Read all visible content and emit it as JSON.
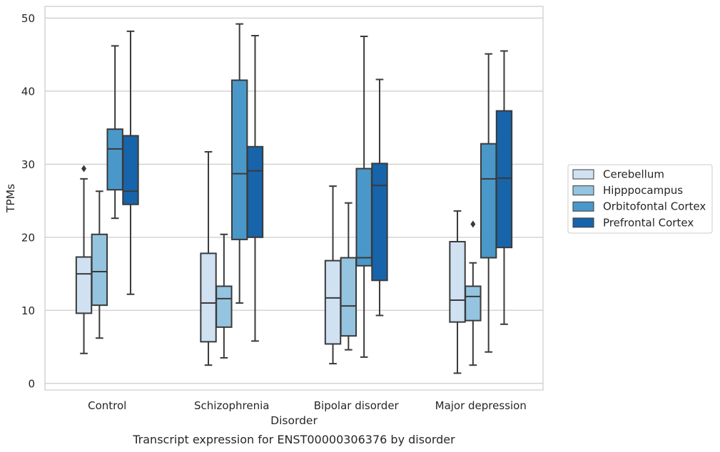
{
  "chart_data": {
    "type": "boxplot",
    "caption": "Transcript expression for ENST00000306376 by disorder",
    "xlabel": "Disorder",
    "ylabel": "TPMs",
    "ylim": [
      -0.9,
      51.6
    ],
    "yticks": [
      0,
      10,
      20,
      30,
      40,
      50
    ],
    "grid": "horizontal",
    "legend_placement": "right",
    "categories": [
      "Control",
      "Schizophrenia",
      "Bipolar disorder",
      "Major depression"
    ],
    "series": [
      {
        "name": "Cerebellum",
        "color": "#d0e1f2",
        "boxes": [
          {
            "whisker_low": 4.1,
            "q1": 9.6,
            "median": 15.0,
            "q3": 17.3,
            "whisker_high": 28.0,
            "outliers": [
              29.4
            ]
          },
          {
            "whisker_low": 2.5,
            "q1": 5.7,
            "median": 11.0,
            "q3": 17.8,
            "whisker_high": 31.7,
            "outliers": []
          },
          {
            "whisker_low": 2.7,
            "q1": 5.4,
            "median": 11.7,
            "q3": 16.8,
            "whisker_high": 27.0,
            "outliers": []
          },
          {
            "whisker_low": 1.4,
            "q1": 8.4,
            "median": 11.4,
            "q3": 19.4,
            "whisker_high": 23.6,
            "outliers": []
          }
        ]
      },
      {
        "name": "Hipppocampus",
        "color": "#94c4df",
        "boxes": [
          {
            "whisker_low": 6.2,
            "q1": 10.7,
            "median": 15.3,
            "q3": 20.4,
            "whisker_high": 26.3,
            "outliers": []
          },
          {
            "whisker_low": 3.5,
            "q1": 7.7,
            "median": 11.6,
            "q3": 13.3,
            "whisker_high": 20.4,
            "outliers": []
          },
          {
            "whisker_low": 4.6,
            "q1": 6.5,
            "median": 10.6,
            "q3": 17.2,
            "whisker_high": 24.7,
            "outliers": []
          },
          {
            "whisker_low": 2.5,
            "q1": 8.6,
            "median": 11.9,
            "q3": 13.3,
            "whisker_high": 16.5,
            "outliers": [
              21.8
            ]
          }
        ]
      },
      {
        "name": "Orbitofontal Cortex",
        "color": "#4a98c9",
        "boxes": [
          {
            "whisker_low": 22.6,
            "q1": 26.5,
            "median": 32.1,
            "q3": 34.8,
            "whisker_high": 46.2,
            "outliers": []
          },
          {
            "whisker_low": 11.0,
            "q1": 19.7,
            "median": 28.7,
            "q3": 41.5,
            "whisker_high": 49.2,
            "outliers": []
          },
          {
            "whisker_low": 3.6,
            "q1": 16.1,
            "median": 17.2,
            "q3": 29.4,
            "whisker_high": 47.5,
            "outliers": []
          },
          {
            "whisker_low": 4.3,
            "q1": 17.2,
            "median": 28.0,
            "q3": 32.8,
            "whisker_high": 45.1,
            "outliers": []
          }
        ]
      },
      {
        "name": "Prefrontal Cortex",
        "color": "#1764ab",
        "boxes": [
          {
            "whisker_low": 12.2,
            "q1": 24.5,
            "median": 26.3,
            "q3": 33.9,
            "whisker_high": 48.2,
            "outliers": []
          },
          {
            "whisker_low": 5.8,
            "q1": 20.0,
            "median": 29.1,
            "q3": 32.4,
            "whisker_high": 47.6,
            "outliers": []
          },
          {
            "whisker_low": 9.3,
            "q1": 14.1,
            "median": 27.1,
            "q3": 30.1,
            "whisker_high": 41.6,
            "outliers": []
          },
          {
            "whisker_low": 8.1,
            "q1": 18.6,
            "median": 28.1,
            "q3": 37.3,
            "whisker_high": 45.5,
            "outliers": []
          }
        ]
      }
    ]
  }
}
